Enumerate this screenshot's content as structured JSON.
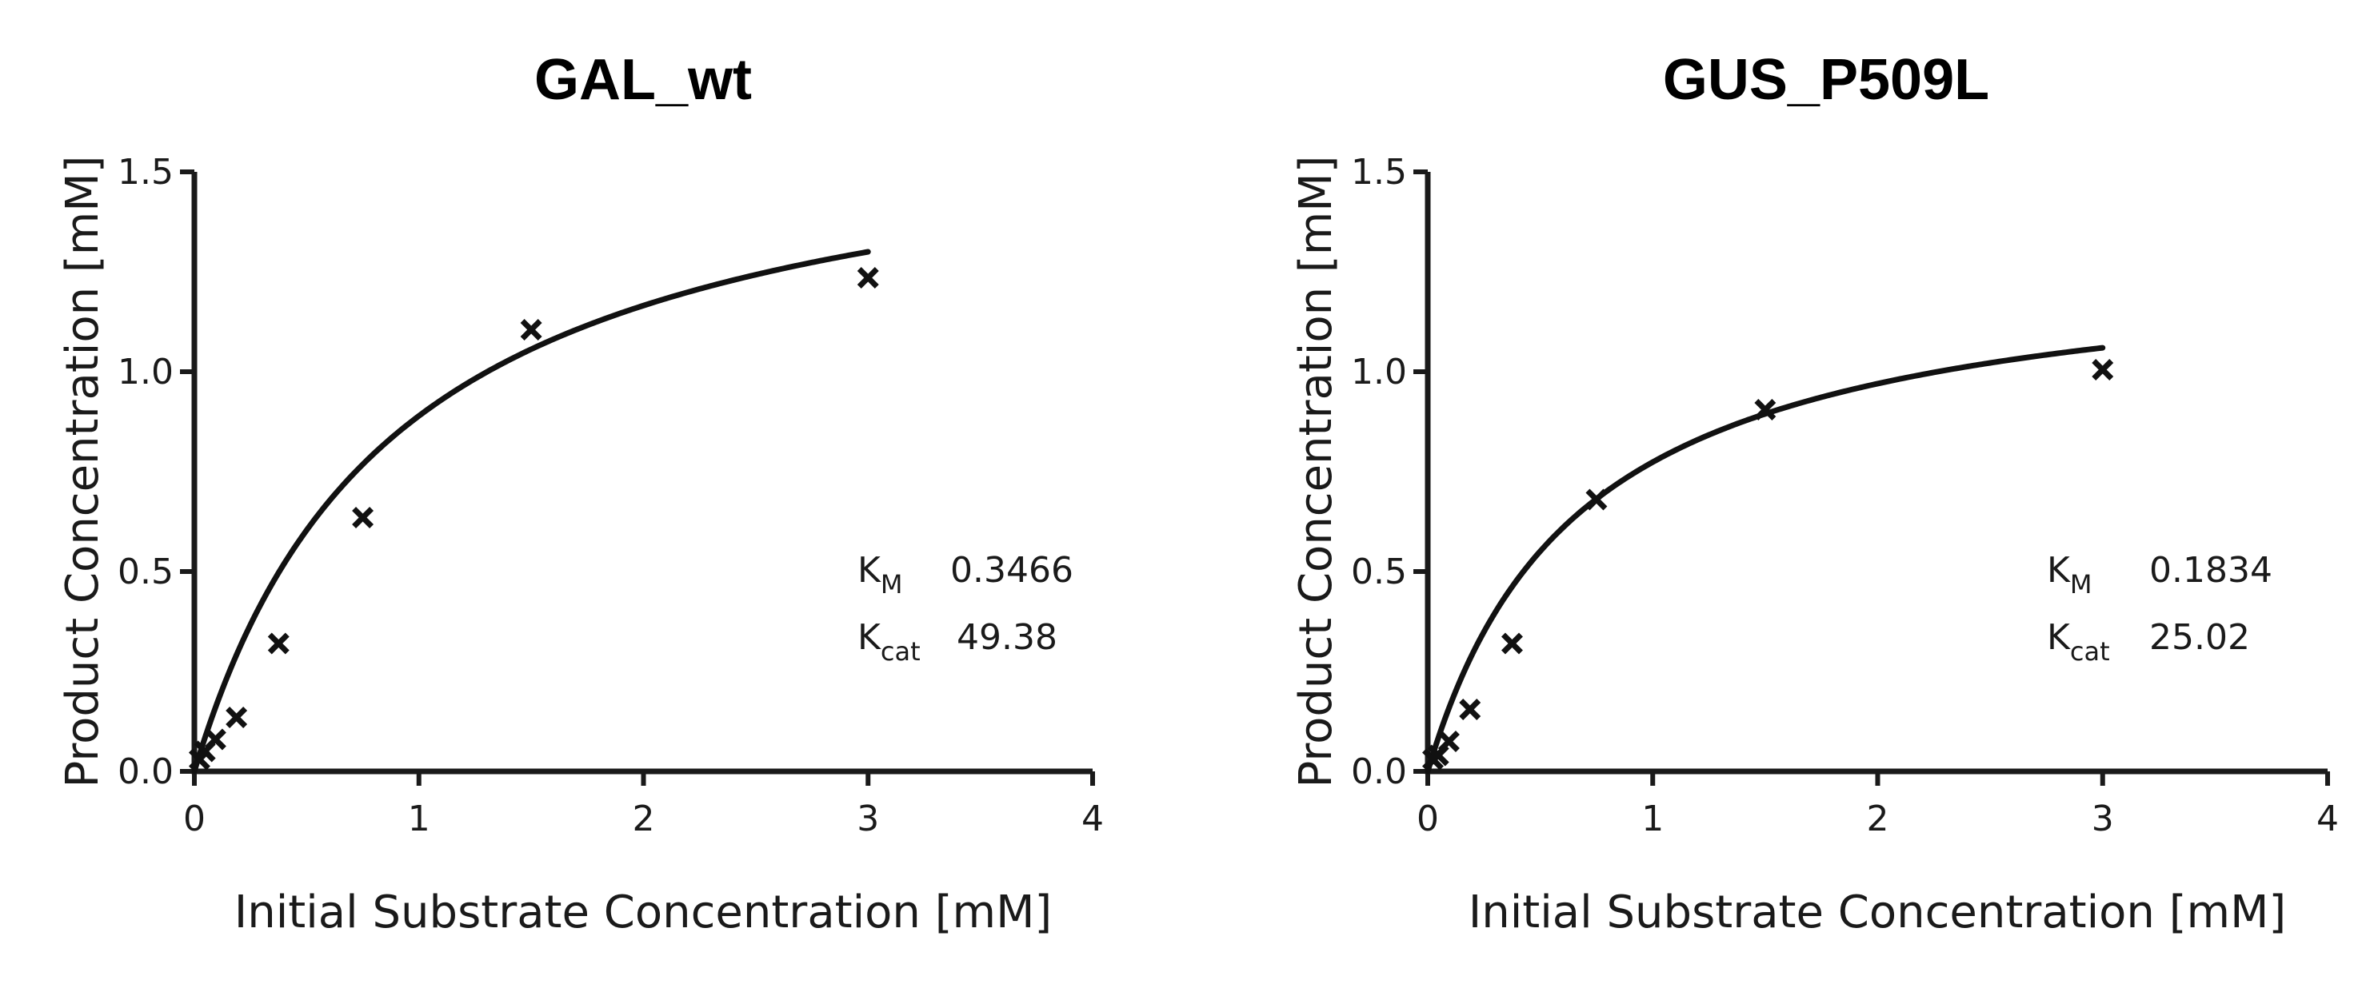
{
  "chart_data": [
    {
      "type": "scatter",
      "title": "GAL_wt",
      "xlabel": "Initial Substrate Concentration [mM]",
      "ylabel": "Product Concentration [mM]",
      "xlim": [
        0,
        4
      ],
      "ylim": [
        0,
        1.5
      ],
      "xticks": [
        "0",
        "1",
        "2",
        "3",
        "4"
      ],
      "yticks": [
        "0.0",
        "0.5",
        "1.0",
        "1.5"
      ],
      "x": [
        0.023,
        0.047,
        0.094,
        0.1875,
        0.375,
        0.75,
        1.5,
        3.0
      ],
      "y": [
        0.03,
        0.05,
        0.08,
        0.135,
        0.32,
        0.635,
        1.105,
        1.235
      ],
      "fit": {
        "model": "Michaelis-Menten",
        "vmax": 1.69,
        "km": 0.9,
        "x_range": [
          0,
          3
        ]
      },
      "params": [
        {
          "symbol": "K",
          "subscript": "M",
          "value": "0.3466"
        },
        {
          "symbol": "K",
          "subscript": "cat",
          "value": "49.38"
        }
      ]
    },
    {
      "type": "scatter",
      "title": "GUS_P509L",
      "xlabel": "Initial Substrate Concentration [mM]",
      "ylabel": "Product Concentration [mM]",
      "xlim": [
        0,
        4
      ],
      "ylim": [
        0,
        1.5
      ],
      "xticks": [
        "0",
        "1",
        "2",
        "3",
        "4"
      ],
      "yticks": [
        "0.0",
        "0.5",
        "1.0",
        "1.5"
      ],
      "x": [
        0.023,
        0.047,
        0.094,
        0.1875,
        0.375,
        0.75,
        1.5,
        3.0
      ],
      "y": [
        0.03,
        0.04,
        0.075,
        0.155,
        0.32,
        0.68,
        0.905,
        1.005
      ],
      "fit": {
        "model": "Michaelis-Menten",
        "vmax": 1.3,
        "km": 0.68,
        "x_range": [
          0,
          3
        ]
      },
      "params": [
        {
          "symbol": "K",
          "subscript": "M",
          "value": "0.1834"
        },
        {
          "symbol": "K",
          "subscript": "cat",
          "value": "25.02"
        }
      ]
    }
  ]
}
